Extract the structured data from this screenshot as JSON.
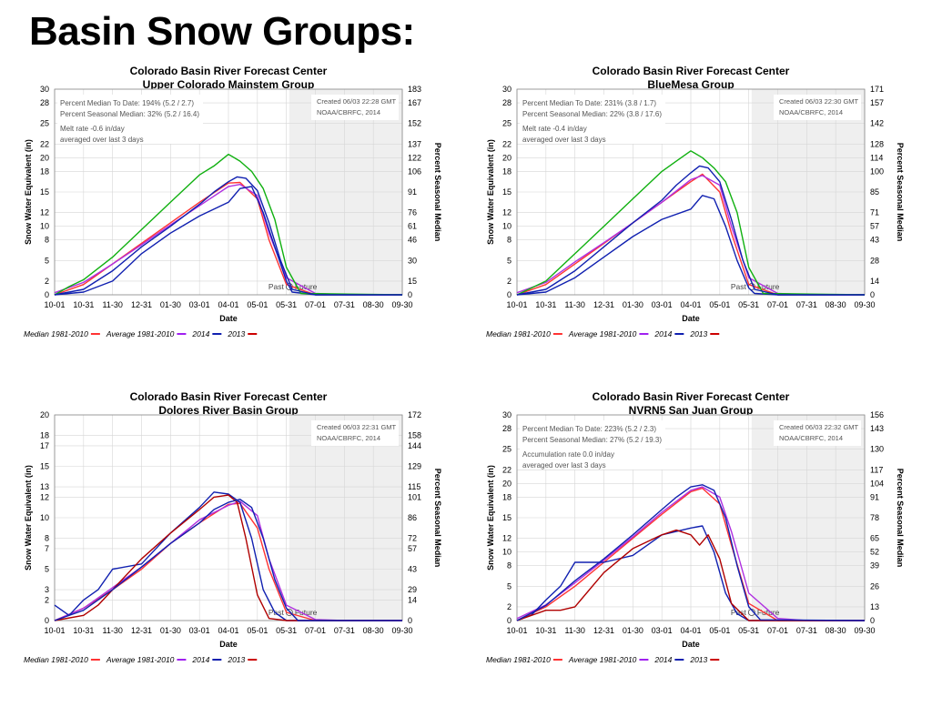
{
  "slide": {
    "title": "Basin Snow Groups:"
  },
  "common": {
    "agency": "Colorado Basin River Forecast Center",
    "x_label": "Date",
    "y_label": "Snow Water Equivalent (in)",
    "y2_label": "Percent Seasonal Median",
    "x_ticks": [
      "10-01",
      "10-31",
      "11-30",
      "12-31",
      "01-30",
      "03-01",
      "04-01",
      "05-01",
      "05-31",
      "07-01",
      "07-31",
      "08-30",
      "09-30"
    ],
    "past_label": "Past",
    "future_label": "Future",
    "legend": [
      {
        "name": "Median 1981-2010",
        "color": "#ff3333"
      },
      {
        "name": "Average 1981-2010",
        "color": "#a020f0"
      },
      {
        "name": "2014",
        "color": "#1020b0"
      },
      {
        "name": "2013",
        "color": "#cc0000"
      }
    ],
    "colors": {
      "median": "#ff3333",
      "average": "#b030e0",
      "y2014": "#1020b0",
      "y2013_green": "#10b010",
      "y2013_red": "#b00000"
    }
  },
  "chart_data": [
    {
      "type": "line",
      "title": "Colorado Basin River Forecast Center",
      "subtitle": "Upper Colorado Mainstem Group",
      "ylim": [
        0,
        30
      ],
      "y_ticks": [
        0,
        2,
        5,
        8,
        10,
        12,
        15,
        18,
        20,
        22,
        25,
        28,
        30
      ],
      "y2_ticks": [
        0,
        15,
        30,
        46,
        61,
        76,
        91,
        106,
        122,
        137,
        152,
        167,
        183
      ],
      "info_lines": [
        "Percent Median To Date: 194% (5.2 / 2.7)",
        "Percent Seasonal Median: 32% (5.2 / 16.4)",
        "Melt rate -0.6 in/day",
        "averaged over last 3 days"
      ],
      "created_lines": [
        "Created 06/03 22:28 GMT",
        "NOAA/CBRFC, 2014"
      ],
      "today_index": 8.1,
      "series": [
        {
          "name": "Median 1981-2010",
          "key": "median",
          "x": [
            0,
            1,
            2,
            3,
            4,
            5,
            6,
            6.4,
            7,
            7.4,
            8,
            9,
            10,
            12
          ],
          "values": [
            0,
            1.5,
            4.5,
            7.5,
            10.5,
            13.5,
            16.3,
            16.4,
            14,
            8,
            1.5,
            0,
            0,
            0
          ]
        },
        {
          "name": "Average 1981-2010",
          "key": "average",
          "x": [
            0,
            1,
            2,
            3,
            4,
            5,
            6,
            6.4,
            7,
            7.4,
            8,
            9,
            10,
            12
          ],
          "values": [
            0.3,
            1.8,
            4.5,
            7.3,
            10.2,
            13,
            15.8,
            16.1,
            14.5,
            9,
            2.5,
            0.2,
            0,
            0
          ]
        },
        {
          "name": "2014",
          "key": "y2014",
          "x": [
            0,
            1,
            2,
            3,
            4,
            5,
            6,
            6.4,
            6.8,
            7.2,
            7.6,
            8,
            8.2,
            9,
            10,
            12
          ],
          "values": [
            0,
            0.4,
            2,
            6,
            9,
            11.5,
            13.5,
            15.5,
            15.8,
            12,
            7,
            2,
            0.4,
            0,
            0,
            0
          ]
        },
        {
          "name": "2013",
          "key": "y2013_green",
          "x": [
            0,
            0.5,
            1,
            2,
            3,
            4,
            5,
            5.5,
            6,
            6.4,
            6.8,
            7.2,
            7.6,
            8,
            8.5,
            12
          ],
          "values": [
            0,
            1.2,
            2.2,
            5.5,
            9.5,
            13.5,
            17.5,
            18.8,
            20.5,
            19.5,
            18,
            15.5,
            11,
            4,
            0.2,
            0
          ]
        },
        {
          "name": "2014 (blue)",
          "key": "y2014",
          "x": [
            0,
            1,
            2,
            3,
            4,
            5,
            5.5,
            6,
            6.3,
            6.6,
            7,
            7.4,
            7.8,
            8.2,
            9,
            12
          ],
          "values": [
            0,
            0.8,
            3.5,
            7,
            10,
            13.2,
            15,
            16.5,
            17.2,
            17,
            15.2,
            10.5,
            5,
            0.8,
            0,
            0
          ]
        }
      ]
    },
    {
      "type": "line",
      "title": "Colorado Basin River Forecast Center",
      "subtitle": "BlueMesa Group",
      "ylim": [
        0,
        30
      ],
      "y_ticks": [
        0,
        2,
        5,
        8,
        10,
        12,
        15,
        18,
        20,
        22,
        25,
        28,
        30
      ],
      "y2_ticks": [
        0,
        14,
        28,
        43,
        57,
        71,
        85,
        100,
        114,
        128,
        142,
        157,
        171
      ],
      "info_lines": [
        "Percent Median To Date: 231% (3.8 / 1.7)",
        "Percent Seasonal Median: 22% (3.8 / 17.6)",
        "Melt rate -0.4 in/day",
        "averaged over last 3 days"
      ],
      "created_lines": [
        "Created 06/03 22:30 GMT",
        "NOAA/CBRFC, 2014"
      ],
      "today_index": 8.1,
      "series": [
        {
          "name": "Median 1981-2010",
          "key": "median",
          "x": [
            0,
            1,
            2,
            3,
            4,
            5,
            6,
            6.4,
            7,
            7.4,
            8,
            9,
            10,
            12
          ],
          "values": [
            0,
            1.5,
            4.5,
            7.5,
            10.5,
            13.5,
            16.5,
            17.6,
            15,
            9,
            1.5,
            0,
            0,
            0
          ]
        },
        {
          "name": "Average 1981-2010",
          "key": "average",
          "x": [
            0,
            1,
            2,
            3,
            4,
            5,
            6,
            6.4,
            7,
            7.4,
            8,
            9,
            10,
            12
          ],
          "values": [
            0.3,
            1.8,
            4.8,
            7.6,
            10.5,
            13.5,
            16.8,
            17.4,
            16,
            10,
            2.5,
            0.2,
            0,
            0
          ]
        },
        {
          "name": "2014",
          "key": "y2014",
          "x": [
            0,
            1,
            2,
            3,
            4,
            5,
            6,
            6.4,
            6.8,
            7.2,
            7.6,
            8,
            8.2,
            9,
            10,
            12
          ],
          "values": [
            0,
            0.4,
            2.5,
            5.5,
            8.5,
            11,
            12.5,
            14.5,
            14,
            10,
            5,
            1,
            0.2,
            0,
            0,
            0
          ]
        },
        {
          "name": "2013",
          "key": "y2013_green",
          "x": [
            0,
            0.5,
            1,
            2,
            3,
            4,
            5,
            5.5,
            6,
            6.4,
            6.8,
            7.2,
            7.6,
            8,
            8.5,
            12
          ],
          "values": [
            0,
            1,
            2,
            6,
            10,
            14,
            18,
            19.5,
            21,
            20,
            18.5,
            16.5,
            12,
            4,
            0.2,
            0
          ]
        },
        {
          "name": "2014 (blue)",
          "key": "y2014",
          "x": [
            0,
            1,
            2,
            3,
            4,
            5,
            5.5,
            6,
            6.3,
            6.6,
            7,
            7.4,
            7.8,
            8.2,
            9,
            12
          ],
          "values": [
            0,
            0.8,
            3.5,
            7,
            10.5,
            13.8,
            16,
            17.8,
            18.8,
            18.5,
            16.5,
            11,
            5,
            0.8,
            0,
            0
          ]
        }
      ]
    },
    {
      "type": "line",
      "title": "Colorado Basin River Forecast Center",
      "subtitle": "Dolores River Basin Group",
      "ylim": [
        0,
        20
      ],
      "y_ticks": [
        0,
        2,
        3,
        5,
        7,
        8,
        10,
        12,
        13,
        15,
        17,
        18,
        20
      ],
      "y2_ticks": [
        0,
        14,
        29,
        43,
        57,
        72,
        86,
        101,
        115,
        129,
        144,
        158,
        172
      ],
      "info_lines": [],
      "created_lines": [
        "Created 06/03 22:31 GMT",
        "NOAA/CBRFC, 2014"
      ],
      "today_index": 8.1,
      "series": [
        {
          "name": "Median 1981-2010",
          "key": "median",
          "x": [
            0,
            1,
            2,
            3,
            4,
            5,
            6,
            6.4,
            7,
            7.4,
            8,
            9,
            10,
            12
          ],
          "values": [
            0,
            1.2,
            3,
            5,
            7.5,
            9.5,
            11.3,
            11.4,
            9,
            5,
            0.8,
            0,
            0,
            0
          ]
        },
        {
          "name": "Average 1981-2010",
          "key": "average",
          "x": [
            0,
            1,
            2,
            3,
            4,
            5,
            6,
            6.4,
            7,
            7.4,
            8,
            9,
            10,
            12
          ],
          "values": [
            0,
            1.2,
            3.2,
            5.2,
            7.5,
            9.8,
            11.2,
            11.6,
            10.2,
            6,
            1.5,
            0.1,
            0,
            0
          ]
        },
        {
          "name": "2014",
          "key": "y2014",
          "x": [
            0,
            0.5,
            1,
            1.5,
            2,
            3,
            4,
            5,
            5.5,
            6,
            6.4,
            6.8,
            7.2,
            7.6,
            8,
            12
          ],
          "values": [
            1.5,
            0.5,
            2,
            3,
            5,
            5.5,
            8.5,
            11,
            12.5,
            12.3,
            11.5,
            8,
            3,
            0.8,
            0,
            0
          ]
        },
        {
          "name": "2013",
          "key": "y2013_red",
          "x": [
            0,
            1,
            1.5,
            2,
            3,
            4,
            5,
            5.5,
            6,
            6.3,
            6.6,
            7,
            7.4,
            8,
            12
          ],
          "values": [
            0,
            0.5,
            1.5,
            3,
            6,
            8.5,
            10.8,
            12,
            12.2,
            11.5,
            8,
            2.5,
            0.2,
            0,
            0
          ]
        },
        {
          "name": "2014 (blue)",
          "key": "y2014",
          "x": [
            0,
            1,
            2,
            3,
            4,
            5,
            5.5,
            6,
            6.4,
            6.8,
            7.2,
            7.6,
            8,
            8.4,
            12
          ],
          "values": [
            0,
            1,
            3,
            5.2,
            7.5,
            9.5,
            10.8,
            11.5,
            11.8,
            11,
            8,
            4,
            1.2,
            0,
            0
          ]
        }
      ]
    },
    {
      "type": "line",
      "title": "Colorado Basin River Forecast Center",
      "subtitle": "NVRN5 San Juan  Group",
      "ylim": [
        0,
        30
      ],
      "y_ticks": [
        0,
        2,
        5,
        8,
        10,
        12,
        15,
        18,
        20,
        22,
        25,
        28,
        30
      ],
      "y2_ticks": [
        0,
        13,
        26,
        39,
        52,
        65,
        78,
        91,
        104,
        117,
        130,
        143,
        156
      ],
      "info_lines": [
        "Percent Median To Date: 223% (5.2 / 2.3)",
        "Percent Seasonal Median: 27% (5.2 / 19.3)",
        "Accumulation rate 0.0 in/day",
        "averaged over last 3 days"
      ],
      "created_lines": [
        "Created 06/03 22:32 GMT",
        "NOAA/CBRFC, 2014"
      ],
      "today_index": 8.1,
      "series": [
        {
          "name": "Median 1981-2010",
          "key": "median",
          "x": [
            0,
            1,
            2,
            3,
            4,
            5,
            6,
            6.4,
            7,
            7.4,
            8,
            9,
            10,
            12
          ],
          "values": [
            0,
            2,
            5,
            8.5,
            12,
            15.5,
            18.8,
            19.3,
            17,
            11,
            2.5,
            0,
            0,
            0
          ]
        },
        {
          "name": "Average 1981-2010",
          "key": "average",
          "x": [
            0,
            1,
            2,
            3,
            4,
            5,
            6,
            6.4,
            7,
            7.4,
            8,
            9,
            10,
            12
          ],
          "values": [
            0.3,
            2.3,
            5.5,
            8.8,
            12.2,
            15.8,
            19,
            19.5,
            18,
            13,
            4,
            0.3,
            0,
            0
          ]
        },
        {
          "name": "2014",
          "key": "y2014",
          "x": [
            0,
            0.5,
            1,
            1.5,
            2,
            3,
            4,
            5,
            5.5,
            6,
            6.4,
            6.8,
            7.2,
            7.6,
            8,
            12
          ],
          "values": [
            0,
            0.8,
            3,
            5,
            8.5,
            8.5,
            9.5,
            12.5,
            13,
            13.5,
            13.8,
            10,
            4,
            1,
            0,
            0
          ]
        },
        {
          "name": "2013",
          "key": "y2013_red",
          "x": [
            0,
            1,
            1.5,
            2,
            3,
            4,
            5,
            5.5,
            6,
            6.3,
            6.6,
            7,
            7.4,
            8,
            12
          ],
          "values": [
            0,
            1.5,
            1.5,
            2,
            7,
            10.5,
            12.5,
            13.2,
            12.5,
            11,
            12.5,
            9,
            2.5,
            0,
            0
          ]
        },
        {
          "name": "2014 (blue)",
          "key": "y2014",
          "x": [
            0,
            1,
            2,
            3,
            4,
            5,
            5.5,
            6,
            6.4,
            6.8,
            7.2,
            7.6,
            8,
            8.4,
            12
          ],
          "values": [
            0,
            2.2,
            5.8,
            9,
            12.5,
            16.2,
            18,
            19.5,
            19.8,
            19,
            15,
            8,
            2,
            0.1,
            0
          ]
        }
      ]
    }
  ]
}
